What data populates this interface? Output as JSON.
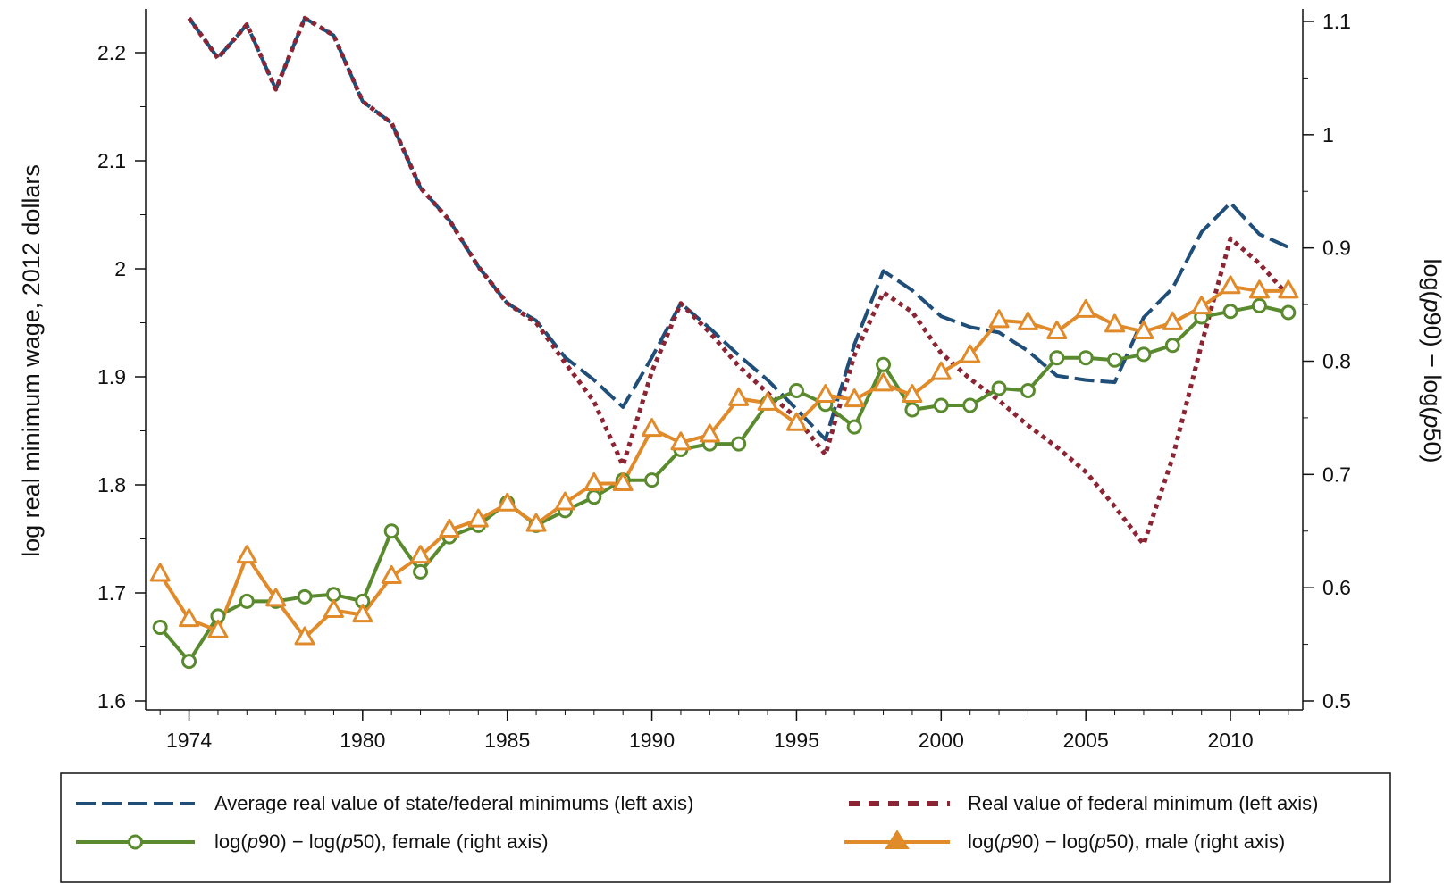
{
  "chart_data": {
    "type": "line",
    "x_ticks": [
      "1974",
      "1980",
      "1985",
      "1990",
      "1995",
      "2000",
      "2005",
      "2010"
    ],
    "xlim": [
      1972.5,
      2012.5
    ],
    "left_axis": {
      "label": "log real minimum wage, 2012 dollars",
      "ylim": [
        1.6,
        2.2325
      ],
      "ticks": [
        "1.6",
        "1.7",
        "1.8",
        "1.9",
        "2",
        "2.1",
        "2.2"
      ]
    },
    "right_axis": {
      "label": "log(p90) − log(p50)",
      "ylim": [
        0.5,
        1.1
      ],
      "ticks": [
        "0.5",
        "0.6",
        "0.7",
        "0.8",
        "0.9",
        "1",
        "1.1"
      ]
    },
    "colors": {
      "state_federal": "#1f4e79",
      "federal": "#8b2433",
      "female": "#5a8a2e",
      "male": "#e08a2a"
    },
    "series": [
      {
        "name": "Average real value of state/federal minimums (left axis)",
        "axis": "left",
        "style": "long-dash",
        "x": [
          1974,
          1975,
          1976,
          1977,
          1978,
          1979,
          1980,
          1981,
          1982,
          1983,
          1984,
          1985,
          1986,
          1987,
          1988,
          1989,
          1990,
          1991,
          1992,
          1993,
          1994,
          1995,
          1996,
          1997,
          1998,
          1999,
          2000,
          2001,
          2002,
          2003,
          2004,
          2005,
          2006,
          2007,
          2008,
          2009,
          2010,
          2011,
          2012
        ],
        "values": [
          2.232,
          2.195,
          2.226,
          2.166,
          2.232,
          2.216,
          2.155,
          2.135,
          2.075,
          2.045,
          2.002,
          1.968,
          1.952,
          1.918,
          1.897,
          1.872,
          1.918,
          1.968,
          1.945,
          1.92,
          1.897,
          1.87,
          1.842,
          1.93,
          1.998,
          1.98,
          1.956,
          1.946,
          1.941,
          1.924,
          1.901,
          1.897,
          1.895,
          1.955,
          1.982,
          2.034,
          2.061,
          2.032,
          2.02
        ]
      },
      {
        "name": "Real value of federal minimum (left axis)",
        "axis": "left",
        "style": "short-dash",
        "x": [
          1974,
          1975,
          1976,
          1977,
          1978,
          1979,
          1980,
          1981,
          1982,
          1983,
          1984,
          1985,
          1986,
          1987,
          1988,
          1989,
          1990,
          1991,
          1992,
          1993,
          1994,
          1995,
          1996,
          1997,
          1998,
          1999,
          2000,
          2001,
          2002,
          2003,
          2004,
          2005,
          2006,
          2007,
          2008,
          2009,
          2010,
          2011,
          2012
        ],
        "values": [
          2.232,
          2.195,
          2.226,
          2.166,
          2.232,
          2.216,
          2.155,
          2.135,
          2.075,
          2.045,
          2.002,
          1.968,
          1.95,
          1.913,
          1.877,
          1.818,
          1.905,
          1.968,
          1.941,
          1.91,
          1.885,
          1.862,
          1.828,
          1.92,
          1.978,
          1.96,
          1.922,
          1.898,
          1.878,
          1.855,
          1.835,
          1.812,
          1.78,
          1.745,
          1.825,
          1.93,
          2.028,
          2.005,
          1.975
        ]
      },
      {
        "name": "log(p90) − log(p50), female (right axis)",
        "axis": "right",
        "style": "solid-circle",
        "x": [
          1973,
          1974,
          1975,
          1976,
          1977,
          1978,
          1979,
          1980,
          1981,
          1982,
          1983,
          1984,
          1985,
          1986,
          1987,
          1988,
          1989,
          1990,
          1991,
          1992,
          1993,
          1994,
          1995,
          1996,
          1997,
          1998,
          1999,
          2000,
          2001,
          2002,
          2003,
          2004,
          2005,
          2006,
          2007,
          2008,
          2009,
          2010,
          2011,
          2012
        ],
        "values": [
          0.565,
          0.535,
          0.575,
          0.588,
          0.588,
          0.592,
          0.594,
          0.588,
          0.65,
          0.614,
          0.645,
          0.655,
          0.675,
          0.655,
          0.668,
          0.68,
          0.695,
          0.695,
          0.722,
          0.727,
          0.727,
          0.763,
          0.774,
          0.762,
          0.742,
          0.797,
          0.757,
          0.761,
          0.761,
          0.776,
          0.774,
          0.803,
          0.803,
          0.801,
          0.806,
          0.814,
          0.839,
          0.844,
          0.849,
          0.843
        ]
      },
      {
        "name": "log(p90) − log(p50), male (right axis)",
        "axis": "right",
        "style": "solid-triangle",
        "x": [
          1973,
          1974,
          1975,
          1976,
          1977,
          1978,
          1979,
          1980,
          1981,
          1982,
          1983,
          1984,
          1985,
          1986,
          1987,
          1988,
          1989,
          1990,
          1991,
          1992,
          1993,
          1994,
          1995,
          1996,
          1997,
          1998,
          1999,
          2000,
          2001,
          2002,
          2003,
          2004,
          2005,
          2006,
          2007,
          2008,
          2009,
          2010,
          2011,
          2012
        ],
        "values": [
          0.612,
          0.572,
          0.562,
          0.628,
          0.59,
          0.556,
          0.58,
          0.576,
          0.61,
          0.628,
          0.651,
          0.66,
          0.674,
          0.656,
          0.675,
          0.692,
          0.692,
          0.74,
          0.728,
          0.735,
          0.767,
          0.763,
          0.745,
          0.77,
          0.766,
          0.78,
          0.77,
          0.79,
          0.805,
          0.836,
          0.834,
          0.826,
          0.845,
          0.832,
          0.826,
          0.834,
          0.848,
          0.866,
          0.862,
          0.862
        ]
      }
    ],
    "legend_position": "bottom",
    "grid": false
  }
}
